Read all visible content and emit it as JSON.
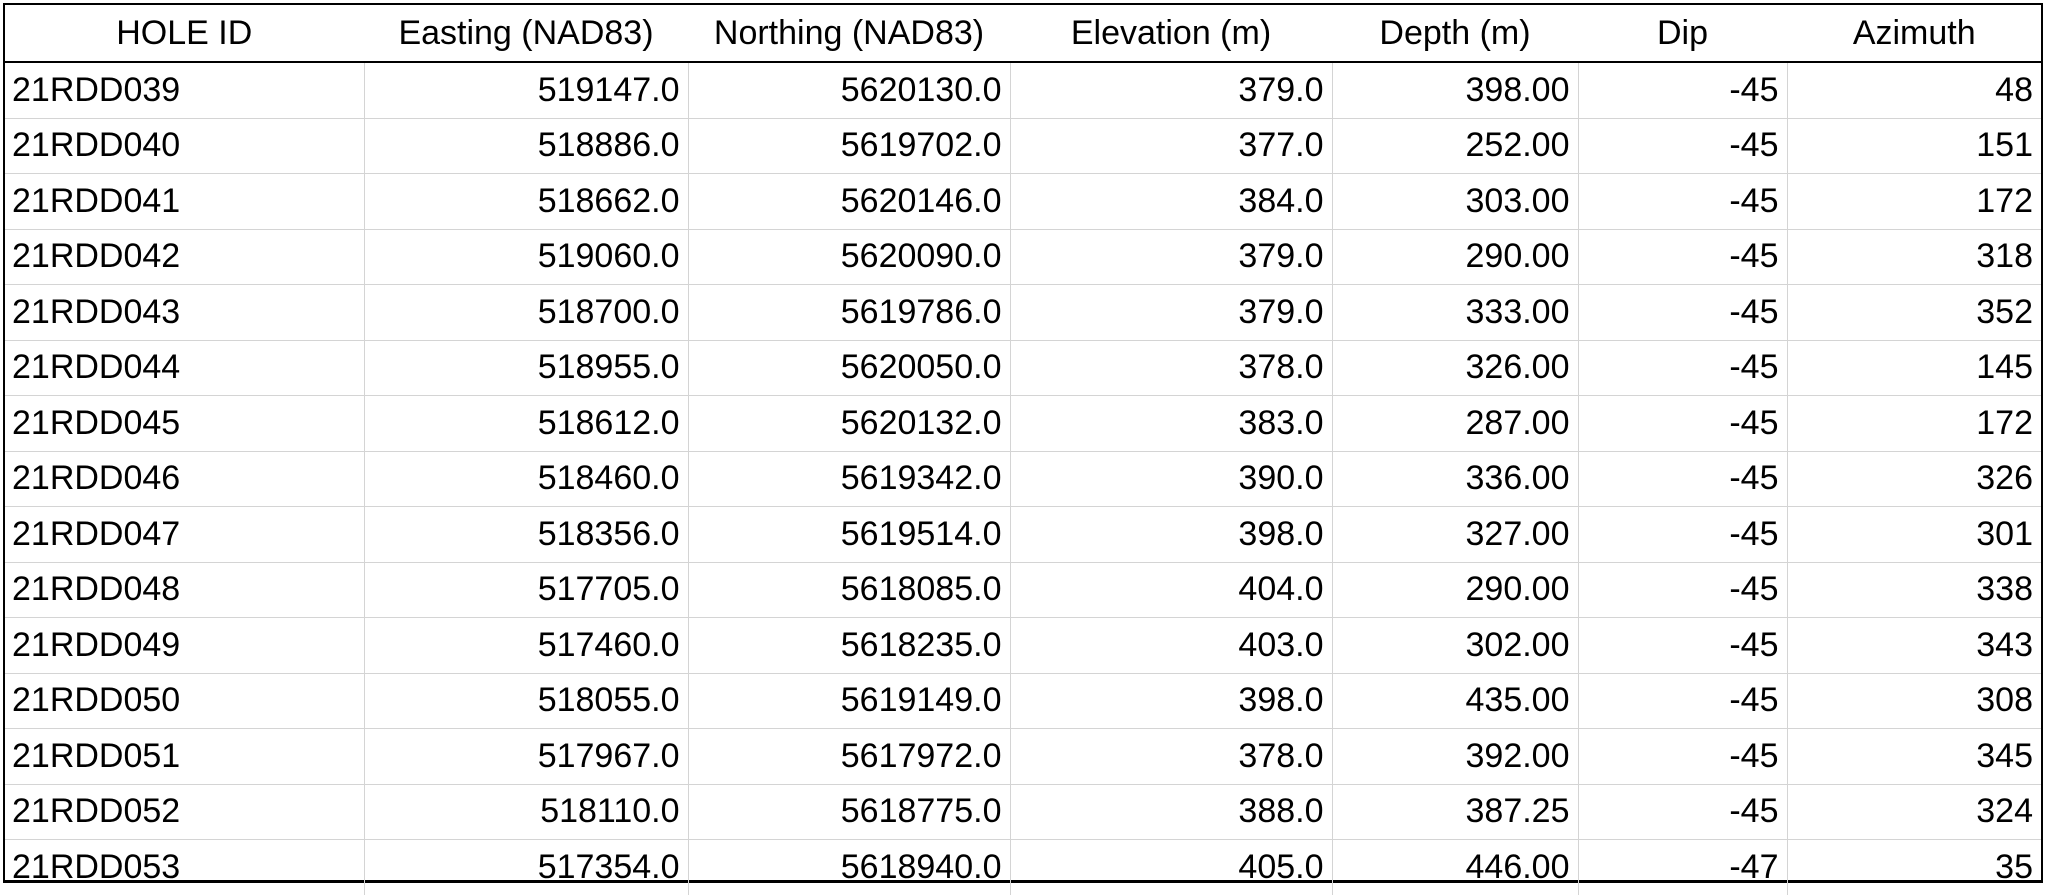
{
  "table": {
    "columns": [
      "HOLE ID",
      "Easting (NAD83)",
      "Northing (NAD83)",
      "Elevation (m)",
      "Depth (m)",
      "Dip",
      "Azimuth"
    ],
    "rows": [
      [
        "21RDD039",
        "519147.0",
        "5620130.0",
        "379.0",
        "398.00",
        "-45",
        "48"
      ],
      [
        "21RDD040",
        "518886.0",
        "5619702.0",
        "377.0",
        "252.00",
        "-45",
        "151"
      ],
      [
        "21RDD041",
        "518662.0",
        "5620146.0",
        "384.0",
        "303.00",
        "-45",
        "172"
      ],
      [
        "21RDD042",
        "519060.0",
        "5620090.0",
        "379.0",
        "290.00",
        "-45",
        "318"
      ],
      [
        "21RDD043",
        "518700.0",
        "5619786.0",
        "379.0",
        "333.00",
        "-45",
        "352"
      ],
      [
        "21RDD044",
        "518955.0",
        "5620050.0",
        "378.0",
        "326.00",
        "-45",
        "145"
      ],
      [
        "21RDD045",
        "518612.0",
        "5620132.0",
        "383.0",
        "287.00",
        "-45",
        "172"
      ],
      [
        "21RDD046",
        "518460.0",
        "5619342.0",
        "390.0",
        "336.00",
        "-45",
        "326"
      ],
      [
        "21RDD047",
        "518356.0",
        "5619514.0",
        "398.0",
        "327.00",
        "-45",
        "301"
      ],
      [
        "21RDD048",
        "517705.0",
        "5618085.0",
        "404.0",
        "290.00",
        "-45",
        "338"
      ],
      [
        "21RDD049",
        "517460.0",
        "5618235.0",
        "403.0",
        "302.00",
        "-45",
        "343"
      ],
      [
        "21RDD050",
        "518055.0",
        "5619149.0",
        "398.0",
        "435.00",
        "-45",
        "308"
      ],
      [
        "21RDD051",
        "517967.0",
        "5617972.0",
        "378.0",
        "392.00",
        "-45",
        "345"
      ],
      [
        "21RDD052",
        "518110.0",
        "5618775.0",
        "388.0",
        "387.25",
        "-45",
        "324"
      ],
      [
        "21RDD053",
        "517354.0",
        "5618940.0",
        "405.0",
        "446.00",
        "-47",
        "35"
      ]
    ]
  }
}
